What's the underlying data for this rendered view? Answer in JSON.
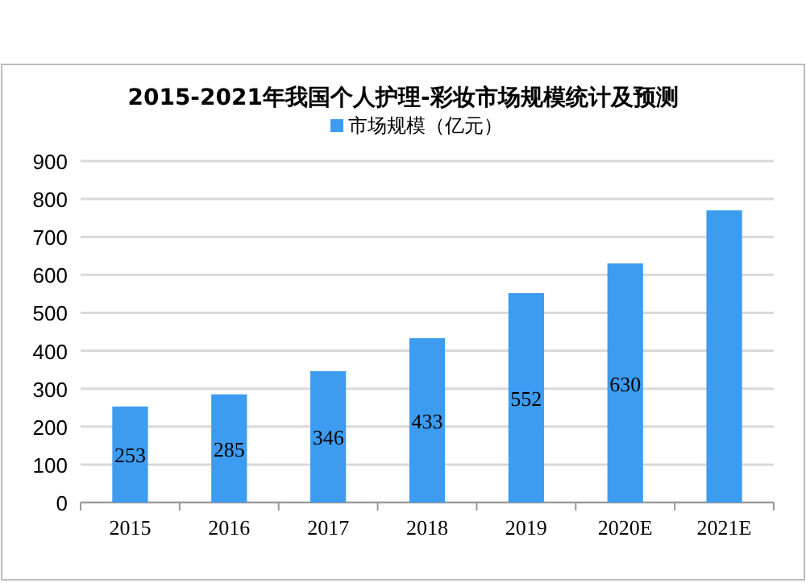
{
  "chart_data": {
    "type": "bar",
    "title": "2015-2021年我国个人护理-彩妆市场规模统计及预测",
    "categories": [
      "2015",
      "2016",
      "2017",
      "2018",
      "2019",
      "2020E",
      "2021E"
    ],
    "series": [
      {
        "name": "市场规模（亿元）",
        "color": "#3d9cf0",
        "values": [
          253,
          285,
          346,
          433,
          552,
          630,
          770
        ],
        "value_labels": [
          "253",
          "285",
          "346",
          "433",
          "552",
          "630",
          null
        ]
      }
    ],
    "ylim": [
      0,
      900
    ],
    "yticks": [
      0,
      100,
      200,
      300,
      400,
      500,
      600,
      700,
      800,
      900
    ],
    "grid": "y",
    "legend": "top"
  }
}
